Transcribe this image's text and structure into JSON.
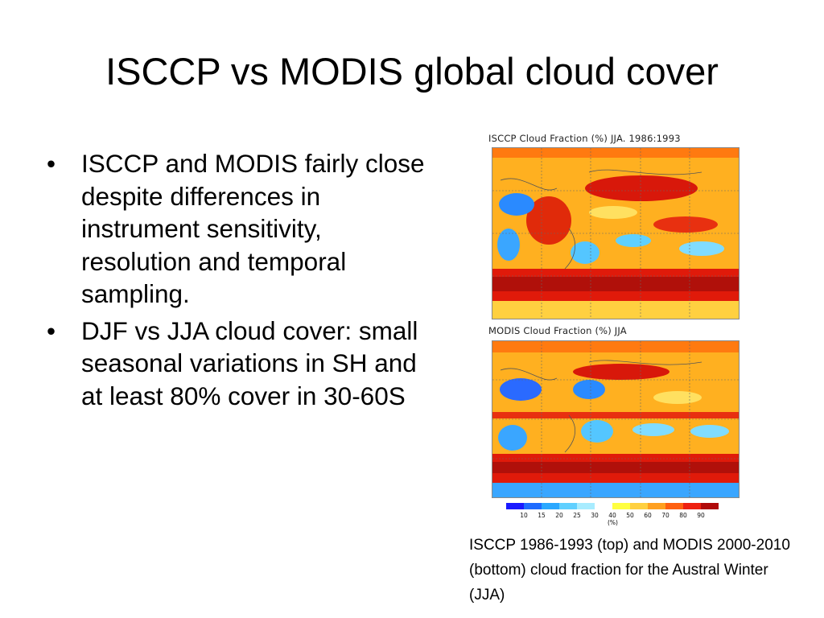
{
  "slide": {
    "title": "ISCCP vs MODIS global cloud cover",
    "bullets": [
      "ISCCP and MODIS fairly close despite differences in instrument sensitivity, resolution and temporal sampling.",
      " DJF vs JJA cloud cover: small seasonal variations in SH and at least 80% cover in 30-60S"
    ],
    "bullet_symbol": "•",
    "caption": "ISCCP 1986-1993 (top) and MODIS 2000-2010 (bottom) cloud fraction for the Austral Winter (JJA)"
  },
  "figure": {
    "top_map_label": "ISCCP Cloud Fraction (%) JJA. 1986:1993",
    "bottom_map_label": "MODIS Cloud Fraction (%) JJA",
    "colorbar": {
      "ticks": [
        "10",
        "15",
        "20",
        "25",
        "30",
        "40",
        "50",
        "60",
        "70",
        "80",
        "90"
      ],
      "unit": "(%)",
      "colors": [
        "#1a1aff",
        "#1e6bff",
        "#2aa8ff",
        "#60d0ff",
        "#a8ecff",
        "#ffffff",
        "#ffff40",
        "#ffd040",
        "#ffa020",
        "#ff6010",
        "#ee2010",
        "#b00a0a"
      ]
    }
  }
}
